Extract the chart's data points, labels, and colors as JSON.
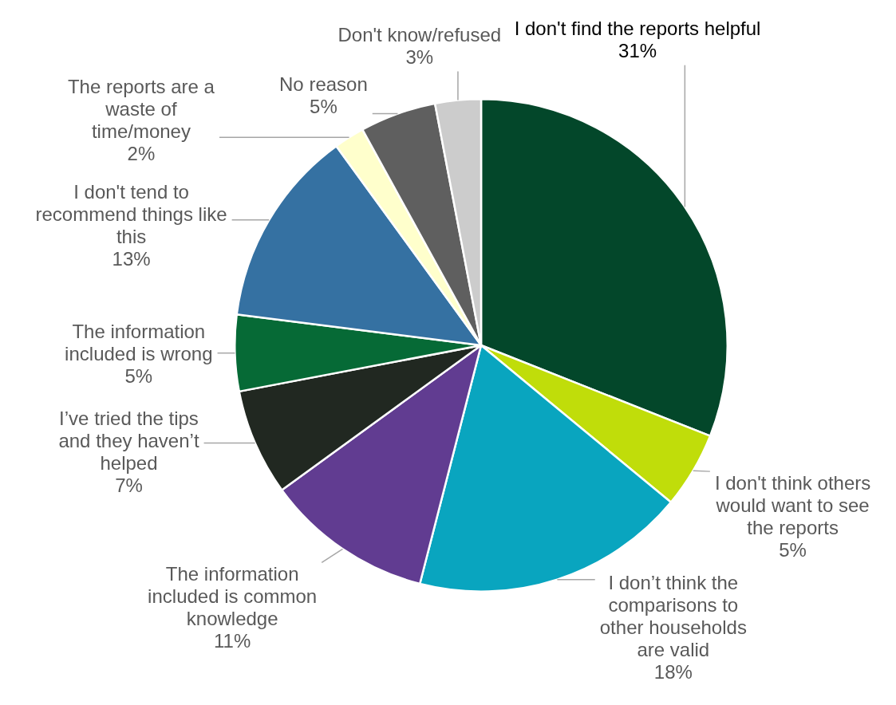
{
  "chart_data": {
    "type": "pie",
    "categories": [
      "I don't find the reports helpful",
      "I don't think others would want to see the reports",
      "I don’t think the comparisons to other households are valid",
      "The information included is common knowledge",
      "I’ve tried the tips and they haven’t helped",
      "The information included is wrong",
      "I don't tend to recommend things like this",
      "The reports are a waste of time/money",
      "No reason",
      "Don't know/refused"
    ],
    "values": [
      31,
      5,
      18,
      11,
      7,
      5,
      13,
      2,
      5,
      3
    ],
    "value_labels": [
      "31%",
      "5%",
      "18%",
      "11%",
      "7%",
      "5%",
      "13%",
      "2%",
      "5%",
      "3%"
    ],
    "colors": [
      "#03472a",
      "#c0dd0a",
      "#09a5bf",
      "#613c91",
      "#212821",
      "#066a36",
      "#3571a2",
      "#ffffcc",
      "#5f5f5f",
      "#cccccc"
    ],
    "legend": false
  }
}
